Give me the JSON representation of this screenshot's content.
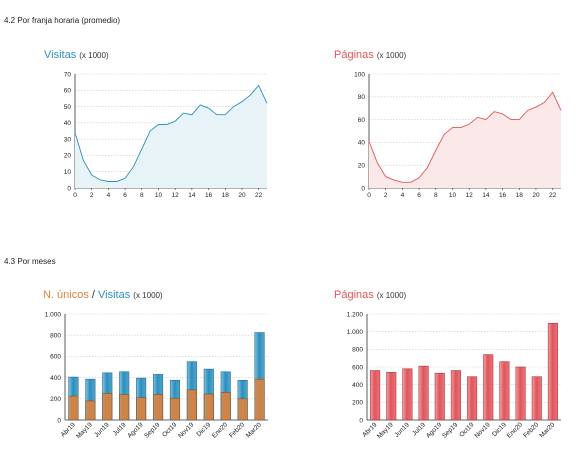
{
  "sections": {
    "hourly": "4.2 Por franja horaria (promedio)",
    "monthly": "4.3 Por meses"
  },
  "colors": {
    "blue": "#2b8fbf",
    "blue_fill": "#e8f3f7",
    "red": "#e0555a",
    "red_fill": "#fbe9ea",
    "orange": "#d9823e",
    "grid": "#cccccc",
    "axis": "#333333"
  },
  "titles": {
    "visitas": {
      "main": "Visitas",
      "unit": "(x 1000)"
    },
    "paginas_hourly": {
      "main": "Páginas",
      "unit": "(x 1000)"
    },
    "unicos": {
      "part1": "N. únicos",
      "sep": " / ",
      "part2": "Visitas",
      "unit": "(x 1000)"
    },
    "paginas_monthly": {
      "main": "Páginas",
      "unit": "(x 1000)"
    }
  },
  "chart_data": [
    {
      "type": "area",
      "id": "visitas-hourly",
      "x": [
        0,
        1,
        2,
        3,
        4,
        5,
        6,
        7,
        8,
        9,
        10,
        11,
        12,
        13,
        14,
        15,
        16,
        17,
        18,
        19,
        20,
        21,
        22,
        23
      ],
      "values": [
        34,
        17,
        8,
        5,
        4,
        4,
        6,
        13,
        24,
        35,
        39,
        39,
        41,
        46,
        45,
        51,
        49,
        45,
        45,
        50,
        53,
        57,
        63,
        52
      ],
      "xticks": [
        0,
        2,
        4,
        6,
        8,
        10,
        12,
        14,
        16,
        18,
        20,
        22
      ],
      "yticks": [
        0,
        10,
        20,
        30,
        40,
        50,
        60,
        70
      ],
      "ylim": [
        0,
        70
      ],
      "title": "Visitas",
      "unit": "(x 1000)",
      "grid": true
    },
    {
      "type": "area",
      "id": "paginas-hourly",
      "x": [
        0,
        1,
        2,
        3,
        4,
        5,
        6,
        7,
        8,
        9,
        10,
        11,
        12,
        13,
        14,
        15,
        16,
        17,
        18,
        19,
        20,
        21,
        22,
        23
      ],
      "values": [
        41,
        22,
        10,
        7,
        5,
        5,
        9,
        18,
        33,
        47,
        53,
        53,
        56,
        62,
        60,
        67,
        65,
        60,
        60,
        68,
        71,
        75,
        84,
        68
      ],
      "xticks": [
        0,
        2,
        4,
        6,
        8,
        10,
        12,
        14,
        16,
        18,
        20,
        22
      ],
      "yticks": [
        0,
        20,
        40,
        60,
        80,
        100
      ],
      "ylim": [
        0,
        100
      ],
      "title": "Páginas",
      "unit": "(x 1000)",
      "grid": true
    },
    {
      "type": "bar",
      "id": "unicos-visitas-monthly",
      "categories": [
        "Abr19",
        "May19",
        "Jun19",
        "Jul19",
        "Ago19",
        "Sep19",
        "Oct19",
        "Nov19",
        "Dic19",
        "Ene20",
        "Feb20",
        "Mar20"
      ],
      "series": [
        {
          "name": "N. únicos",
          "values": [
            225,
            180,
            250,
            240,
            210,
            240,
            205,
            285,
            245,
            260,
            200,
            385
          ]
        },
        {
          "name": "Visitas",
          "values": [
            405,
            385,
            445,
            455,
            395,
            430,
            375,
            550,
            480,
            455,
            375,
            825
          ]
        }
      ],
      "yticks": [
        0,
        200,
        400,
        600,
        800,
        1000
      ],
      "yticklabels": [
        "0",
        "200",
        "400",
        "600",
        "800",
        "1.000"
      ],
      "ylim": [
        0,
        1000
      ],
      "title": "N. únicos / Visitas",
      "unit": "(x 1000)",
      "grid": true
    },
    {
      "type": "bar",
      "id": "paginas-monthly",
      "categories": [
        "Abr19",
        "May19",
        "Jun19",
        "Jul19",
        "Ago19",
        "Sep19",
        "Oct19",
        "Nov19",
        "Dic19",
        "Ene20",
        "Feb20",
        "Mar20"
      ],
      "series": [
        {
          "name": "Páginas",
          "values": [
            560,
            540,
            580,
            610,
            530,
            560,
            490,
            740,
            660,
            600,
            490,
            1095
          ]
        }
      ],
      "yticks": [
        0,
        200,
        400,
        600,
        800,
        1000,
        1200
      ],
      "yticklabels": [
        "0",
        "200",
        "400",
        "600",
        "800",
        "1.000",
        "1.200"
      ],
      "ylim": [
        0,
        1200
      ],
      "title": "Páginas",
      "unit": "(x 1000)",
      "grid": true
    }
  ]
}
